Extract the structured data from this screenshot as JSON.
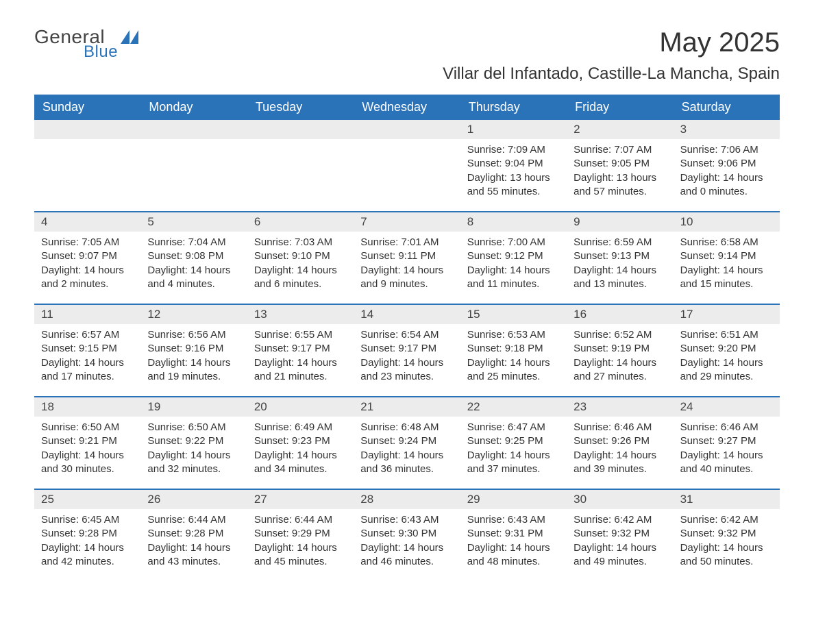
{
  "brand": {
    "word1": "General",
    "word2": "Blue",
    "shape_color": "#2b73b8",
    "text1_color": "#444444",
    "text2_color": "#2b73b8"
  },
  "title": "May 2025",
  "subtitle": "Villar del Infantado, Castille-La Mancha, Spain",
  "colors": {
    "header_bg": "#2b73b8",
    "header_text": "#ffffff",
    "daynum_bg": "#ececec",
    "body_text": "#333333",
    "rule": "#2b73b8",
    "page_bg": "#ffffff"
  },
  "typography": {
    "title_fontsize": 40,
    "subtitle_fontsize": 24,
    "dayheader_fontsize": 18,
    "daynum_fontsize": 17,
    "body_fontsize": 15,
    "font_family": "Arial"
  },
  "layout": {
    "columns": 7,
    "rows": 5,
    "cell_padding_bottom": 18
  },
  "day_labels": [
    "Sunday",
    "Monday",
    "Tuesday",
    "Wednesday",
    "Thursday",
    "Friday",
    "Saturday"
  ],
  "weeks": [
    [
      {
        "blank": true
      },
      {
        "blank": true
      },
      {
        "blank": true
      },
      {
        "blank": true
      },
      {
        "num": "1",
        "sunrise": "Sunrise: 7:09 AM",
        "sunset": "Sunset: 9:04 PM",
        "daylight": "Daylight: 13 hours and 55 minutes."
      },
      {
        "num": "2",
        "sunrise": "Sunrise: 7:07 AM",
        "sunset": "Sunset: 9:05 PM",
        "daylight": "Daylight: 13 hours and 57 minutes."
      },
      {
        "num": "3",
        "sunrise": "Sunrise: 7:06 AM",
        "sunset": "Sunset: 9:06 PM",
        "daylight": "Daylight: 14 hours and 0 minutes."
      }
    ],
    [
      {
        "num": "4",
        "sunrise": "Sunrise: 7:05 AM",
        "sunset": "Sunset: 9:07 PM",
        "daylight": "Daylight: 14 hours and 2 minutes."
      },
      {
        "num": "5",
        "sunrise": "Sunrise: 7:04 AM",
        "sunset": "Sunset: 9:08 PM",
        "daylight": "Daylight: 14 hours and 4 minutes."
      },
      {
        "num": "6",
        "sunrise": "Sunrise: 7:03 AM",
        "sunset": "Sunset: 9:10 PM",
        "daylight": "Daylight: 14 hours and 6 minutes."
      },
      {
        "num": "7",
        "sunrise": "Sunrise: 7:01 AM",
        "sunset": "Sunset: 9:11 PM",
        "daylight": "Daylight: 14 hours and 9 minutes."
      },
      {
        "num": "8",
        "sunrise": "Sunrise: 7:00 AM",
        "sunset": "Sunset: 9:12 PM",
        "daylight": "Daylight: 14 hours and 11 minutes."
      },
      {
        "num": "9",
        "sunrise": "Sunrise: 6:59 AM",
        "sunset": "Sunset: 9:13 PM",
        "daylight": "Daylight: 14 hours and 13 minutes."
      },
      {
        "num": "10",
        "sunrise": "Sunrise: 6:58 AM",
        "sunset": "Sunset: 9:14 PM",
        "daylight": "Daylight: 14 hours and 15 minutes."
      }
    ],
    [
      {
        "num": "11",
        "sunrise": "Sunrise: 6:57 AM",
        "sunset": "Sunset: 9:15 PM",
        "daylight": "Daylight: 14 hours and 17 minutes."
      },
      {
        "num": "12",
        "sunrise": "Sunrise: 6:56 AM",
        "sunset": "Sunset: 9:16 PM",
        "daylight": "Daylight: 14 hours and 19 minutes."
      },
      {
        "num": "13",
        "sunrise": "Sunrise: 6:55 AM",
        "sunset": "Sunset: 9:17 PM",
        "daylight": "Daylight: 14 hours and 21 minutes."
      },
      {
        "num": "14",
        "sunrise": "Sunrise: 6:54 AM",
        "sunset": "Sunset: 9:17 PM",
        "daylight": "Daylight: 14 hours and 23 minutes."
      },
      {
        "num": "15",
        "sunrise": "Sunrise: 6:53 AM",
        "sunset": "Sunset: 9:18 PM",
        "daylight": "Daylight: 14 hours and 25 minutes."
      },
      {
        "num": "16",
        "sunrise": "Sunrise: 6:52 AM",
        "sunset": "Sunset: 9:19 PM",
        "daylight": "Daylight: 14 hours and 27 minutes."
      },
      {
        "num": "17",
        "sunrise": "Sunrise: 6:51 AM",
        "sunset": "Sunset: 9:20 PM",
        "daylight": "Daylight: 14 hours and 29 minutes."
      }
    ],
    [
      {
        "num": "18",
        "sunrise": "Sunrise: 6:50 AM",
        "sunset": "Sunset: 9:21 PM",
        "daylight": "Daylight: 14 hours and 30 minutes."
      },
      {
        "num": "19",
        "sunrise": "Sunrise: 6:50 AM",
        "sunset": "Sunset: 9:22 PM",
        "daylight": "Daylight: 14 hours and 32 minutes."
      },
      {
        "num": "20",
        "sunrise": "Sunrise: 6:49 AM",
        "sunset": "Sunset: 9:23 PM",
        "daylight": "Daylight: 14 hours and 34 minutes."
      },
      {
        "num": "21",
        "sunrise": "Sunrise: 6:48 AM",
        "sunset": "Sunset: 9:24 PM",
        "daylight": "Daylight: 14 hours and 36 minutes."
      },
      {
        "num": "22",
        "sunrise": "Sunrise: 6:47 AM",
        "sunset": "Sunset: 9:25 PM",
        "daylight": "Daylight: 14 hours and 37 minutes."
      },
      {
        "num": "23",
        "sunrise": "Sunrise: 6:46 AM",
        "sunset": "Sunset: 9:26 PM",
        "daylight": "Daylight: 14 hours and 39 minutes."
      },
      {
        "num": "24",
        "sunrise": "Sunrise: 6:46 AM",
        "sunset": "Sunset: 9:27 PM",
        "daylight": "Daylight: 14 hours and 40 minutes."
      }
    ],
    [
      {
        "num": "25",
        "sunrise": "Sunrise: 6:45 AM",
        "sunset": "Sunset: 9:28 PM",
        "daylight": "Daylight: 14 hours and 42 minutes."
      },
      {
        "num": "26",
        "sunrise": "Sunrise: 6:44 AM",
        "sunset": "Sunset: 9:28 PM",
        "daylight": "Daylight: 14 hours and 43 minutes."
      },
      {
        "num": "27",
        "sunrise": "Sunrise: 6:44 AM",
        "sunset": "Sunset: 9:29 PM",
        "daylight": "Daylight: 14 hours and 45 minutes."
      },
      {
        "num": "28",
        "sunrise": "Sunrise: 6:43 AM",
        "sunset": "Sunset: 9:30 PM",
        "daylight": "Daylight: 14 hours and 46 minutes."
      },
      {
        "num": "29",
        "sunrise": "Sunrise: 6:43 AM",
        "sunset": "Sunset: 9:31 PM",
        "daylight": "Daylight: 14 hours and 48 minutes."
      },
      {
        "num": "30",
        "sunrise": "Sunrise: 6:42 AM",
        "sunset": "Sunset: 9:32 PM",
        "daylight": "Daylight: 14 hours and 49 minutes."
      },
      {
        "num": "31",
        "sunrise": "Sunrise: 6:42 AM",
        "sunset": "Sunset: 9:32 PM",
        "daylight": "Daylight: 14 hours and 50 minutes."
      }
    ]
  ]
}
